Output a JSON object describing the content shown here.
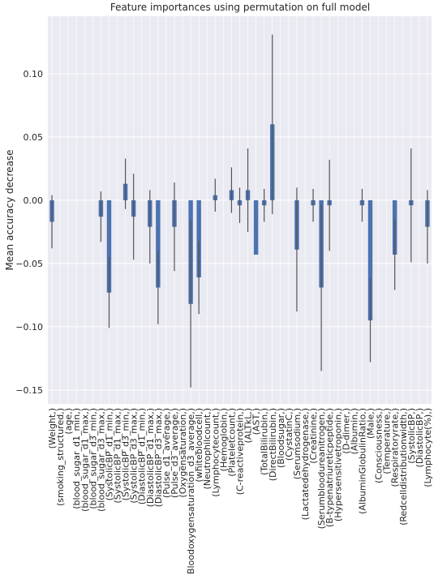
{
  "chart_data": {
    "type": "bar",
    "title": "Feature importances using permutation on full model",
    "ylabel": "Mean accuracy decrease",
    "categories": [
      "(Weight,)",
      "(smoking_structured,)",
      "(age,)",
      "(blood_sugar_d1_min,)",
      "(blood_sugar_d1_max,)",
      "(blood_sugar_d3_min,)",
      "(blood_sugar_d3_max,)",
      "(SystolicBP_d1_min,)",
      "(SystolicBP_d1_max,)",
      "(SystolicBP_d3_min,)",
      "(SystolicBP_d3_max,)",
      "(DiastolicBP_d1_min,)",
      "(DiastolicBP_d1_max,)",
      "(DiastolicBP_d3_max,)",
      "(Pulse_d1_average,)",
      "(Pulse_d3_average,)",
      "(Oxygensaturation,)",
      "(Bloodoxygensaturation_d3_average,)",
      "(whitebloodcell,)",
      "(Neutrophilcount,)",
      "(Lymphocytecount,)",
      "(Hemoglobin,)",
      "(Plateletcount,)",
      "(C-reactiveprotein,)",
      "(ALTkL,)",
      "(AST,)",
      "(TotalBilirubin,)",
      "(DirectBilirubin,)",
      "(Bloodsugar,)",
      "(CystatinC,)",
      "(Serumsodium,)",
      "(Lactatedehydrogenase,)",
      "(Creatinine,)",
      "(Serumbloodureanitrogen,)",
      "(B-typenatriureticpeptide,)",
      "(Hypersensitivetroponin,)",
      "(D-dimer,)",
      "(Albumin,)",
      "(AlbuminGlobulinRatio,)",
      "(Male,)",
      "(Consciousness,)",
      "(Temperature,)",
      "(Respiratoryrate,)",
      "(Redcelldistributionwidth,)",
      "(SystolicBP,)",
      "(DiastolicBP,)",
      "(Lymphocyte(%),)"
    ],
    "values": [
      -0.017,
      0,
      0,
      0,
      0,
      0,
      -0.013,
      -0.073,
      0,
      0.013,
      -0.013,
      0,
      -0.021,
      -0.069,
      0,
      -0.021,
      0,
      -0.082,
      -0.061,
      0,
      0.004,
      0,
      0.008,
      -0.004,
      0.008,
      -0.043,
      -0.004,
      0.06,
      0,
      0,
      -0.039,
      0,
      -0.004,
      -0.069,
      -0.004,
      0,
      0,
      0,
      -0.004,
      -0.095,
      0,
      0,
      -0.043,
      0,
      -0.004,
      0,
      -0.021
    ],
    "errors": [
      0.021,
      0,
      0,
      0,
      0,
      0,
      0.02,
      0.028,
      0,
      0.02,
      0.034,
      0,
      0.029,
      0.029,
      0,
      0.035,
      0,
      0.066,
      0.029,
      0,
      0.013,
      0,
      0.018,
      0.014,
      0.033,
      0,
      0.013,
      0.071,
      0,
      0,
      0.049,
      0,
      0.013,
      0.066,
      0.036,
      0,
      0,
      0,
      0.013,
      0.033,
      0,
      0,
      0.028,
      0,
      0.045,
      0,
      0.029
    ],
    "color": "#4c72b0",
    "error_color": "#555555",
    "ylim": [
      -0.161,
      0.1455
    ],
    "yticks": [
      {
        "value": -0.15,
        "label": "−0.15"
      },
      {
        "value": -0.1,
        "label": "−0.10"
      },
      {
        "value": -0.05,
        "label": "−0.05"
      },
      {
        "value": 0,
        "label": "0.00"
      },
      {
        "value": 0.05,
        "label": "0.05"
      },
      {
        "value": 0.1,
        "label": "0.10"
      }
    ],
    "grid": true
  }
}
